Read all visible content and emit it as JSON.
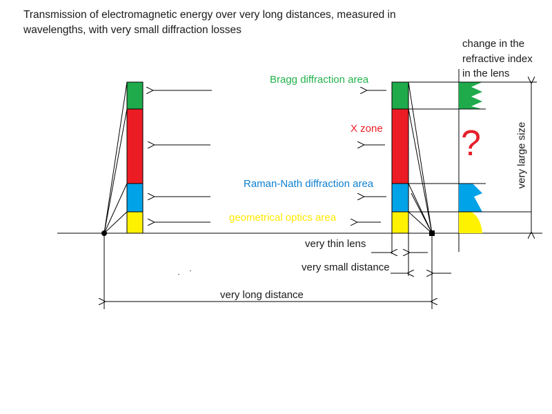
{
  "title": "Transmission of electromagnetic energy over very long distances, measured in wavelengths, with very small diffraction losses",
  "zones": {
    "bragg": "Bragg diffraction area",
    "x_zone": "X zone",
    "raman_nath": "Raman-Nath diffraction area",
    "geometrical": "geometrical optics area"
  },
  "side_note": [
    "change in the",
    "refractive index",
    "in the lens"
  ],
  "question_mark": "?",
  "vertical_label": "very large size",
  "dimensions": {
    "thin_lens": "very thin lens",
    "small_distance": "very small distance",
    "long_distance": "very long distance"
  },
  "colors": {
    "green": "#1faa4b",
    "red": "#ec1c24",
    "blue": "#00a2e8",
    "yellow": "#fff200",
    "bragg_text": "#22b14c",
    "x_text": "#ed1c24",
    "raman_text": "#0e7fd0",
    "geo_text": "#ffe800"
  }
}
